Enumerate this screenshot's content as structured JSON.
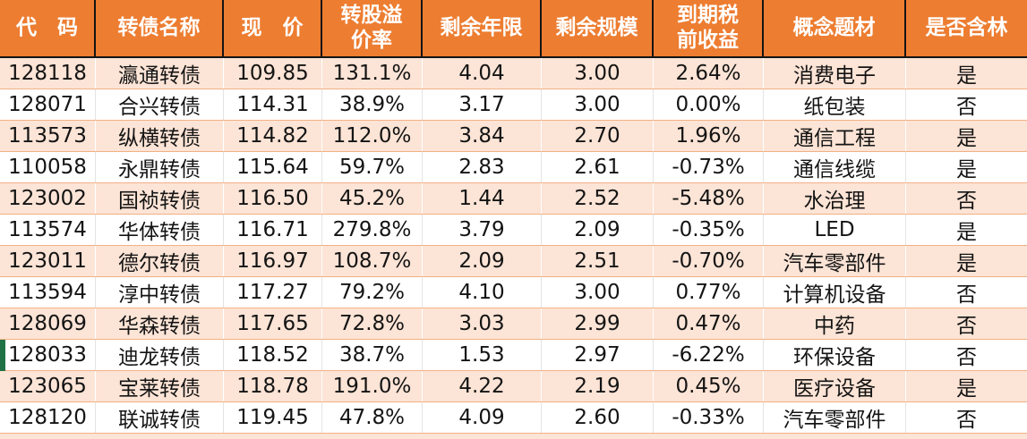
{
  "table": {
    "columns": [
      {
        "key": "code",
        "label": "代　码"
      },
      {
        "key": "name",
        "label": "转债名称"
      },
      {
        "key": "price",
        "label": "现　价"
      },
      {
        "key": "premium",
        "label": "转股溢\n价率"
      },
      {
        "key": "years",
        "label": "剩余年限"
      },
      {
        "key": "size",
        "label": "剩余规模"
      },
      {
        "key": "yield",
        "label": "到期税\n前收益"
      },
      {
        "key": "theme",
        "label": "概念题材"
      },
      {
        "key": "forest",
        "label": "是否含林"
      }
    ],
    "rows": [
      {
        "code": "128118",
        "name": "瀛通转债",
        "price": "109.85",
        "premium": "131.1%",
        "years": "4.04",
        "size": "3.00",
        "yield": "2.64%",
        "theme": "消费电子",
        "forest": "是"
      },
      {
        "code": "128071",
        "name": "合兴转债",
        "price": "114.31",
        "premium": "38.9%",
        "years": "3.17",
        "size": "3.00",
        "yield": "0.00%",
        "theme": "纸包装",
        "forest": "否"
      },
      {
        "code": "113573",
        "name": "纵横转债",
        "price": "114.82",
        "premium": "112.0%",
        "years": "3.84",
        "size": "2.70",
        "yield": "1.96%",
        "theme": "通信工程",
        "forest": "是"
      },
      {
        "code": "110058",
        "name": "永鼎转债",
        "price": "115.64",
        "premium": "59.7%",
        "years": "2.83",
        "size": "2.61",
        "yield": "-0.73%",
        "theme": "通信线缆",
        "forest": "是"
      },
      {
        "code": "123002",
        "name": "国祯转债",
        "price": "116.50",
        "premium": "45.2%",
        "years": "1.44",
        "size": "2.52",
        "yield": "-5.48%",
        "theme": "水治理",
        "forest": "否"
      },
      {
        "code": "113574",
        "name": "华体转债",
        "price": "116.71",
        "premium": "279.8%",
        "years": "3.79",
        "size": "2.09",
        "yield": "-0.35%",
        "theme": "LED",
        "forest": "是"
      },
      {
        "code": "123011",
        "name": "德尔转债",
        "price": "116.97",
        "premium": "108.7%",
        "years": "2.09",
        "size": "2.51",
        "yield": "-0.70%",
        "theme": "汽车零部件",
        "forest": "是"
      },
      {
        "code": "113594",
        "name": "淳中转债",
        "price": "117.27",
        "premium": "79.2%",
        "years": "4.10",
        "size": "3.00",
        "yield": "0.77%",
        "theme": "计算机设备",
        "forest": "否"
      },
      {
        "code": "128069",
        "name": "华森转债",
        "price": "117.65",
        "premium": "72.8%",
        "years": "3.03",
        "size": "2.99",
        "yield": "0.47%",
        "theme": "中药",
        "forest": "否"
      },
      {
        "code": "128033",
        "name": "迪龙转债",
        "price": "118.52",
        "premium": "38.7%",
        "years": "1.53",
        "size": "2.97",
        "yield": "-6.22%",
        "theme": "环保设备",
        "forest": "否"
      },
      {
        "code": "123065",
        "name": "宝莱转债",
        "price": "118.78",
        "premium": "191.0%",
        "years": "4.22",
        "size": "2.19",
        "yield": "0.45%",
        "theme": "医疗设备",
        "forest": "是"
      },
      {
        "code": "128120",
        "name": "联诚转债",
        "price": "119.45",
        "premium": "47.8%",
        "years": "4.09",
        "size": "2.60",
        "yield": "-0.33%",
        "theme": "汽车零部件",
        "forest": "否"
      }
    ]
  },
  "marker": {
    "attached_row_code": "128033"
  },
  "colors": {
    "header_bg": "#ED7D31",
    "header_text": "#FFFFFF",
    "stripe_bg": "#FCE4D6",
    "row_line": "#F2B184",
    "dark_border": "#141414",
    "text": "#141414",
    "marker_green": "#1E7145"
  }
}
